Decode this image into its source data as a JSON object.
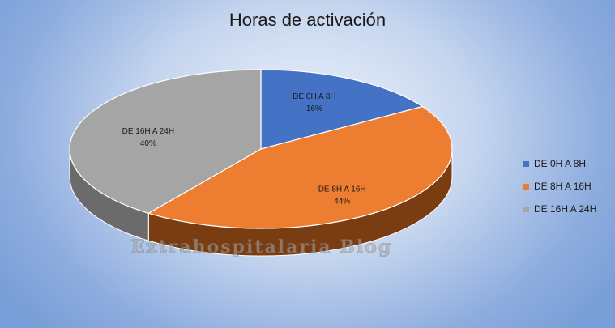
{
  "chart_data": {
    "type": "pie",
    "title": "Horas de activación",
    "categories": [
      "DE 0H A 8H",
      "DE 8H A 16H",
      "DE 16H A 24H"
    ],
    "values": [
      16,
      44,
      40
    ],
    "value_labels": [
      "16%",
      "44%",
      "40%"
    ],
    "colors": [
      "#4472c4",
      "#ed7d31",
      "#a5a5a5"
    ],
    "side_colors": [
      "#2f528f",
      "#7a3d12",
      "#6b6b6b"
    ],
    "legend_position": "right",
    "style": "3d"
  },
  "watermark": "Extrahospitalaria Blog"
}
